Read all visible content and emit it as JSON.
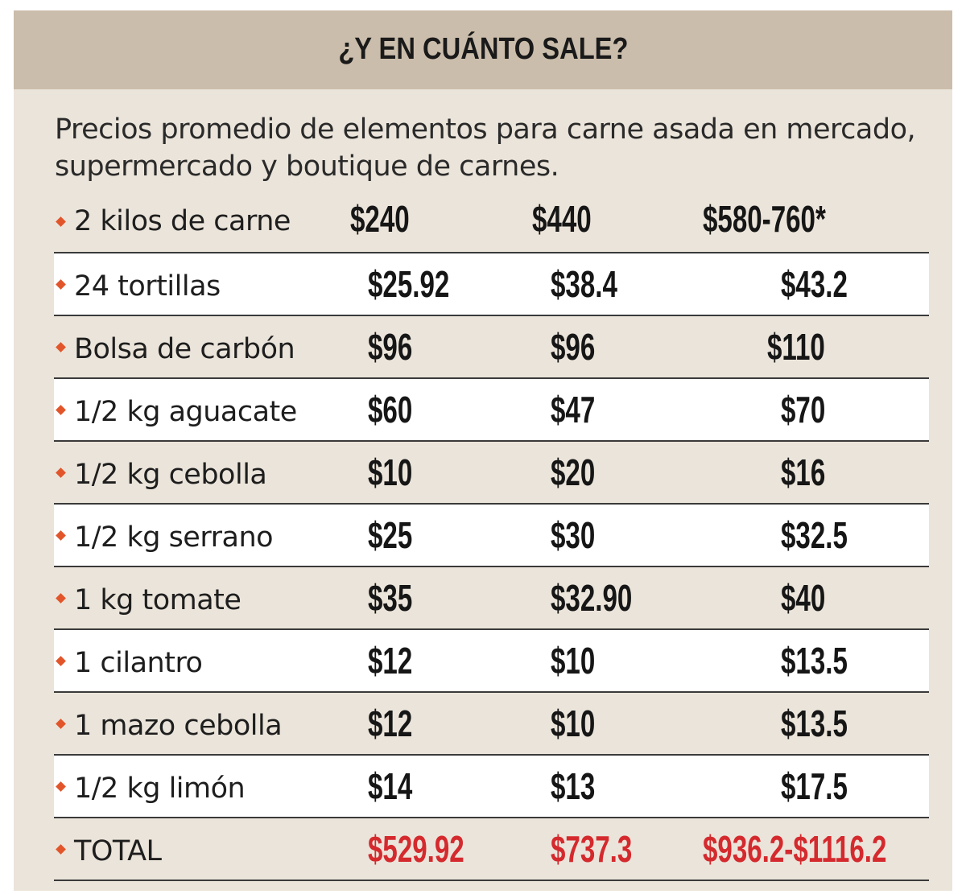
{
  "header": {
    "title": "¿Y EN CUÁNTO SALE?"
  },
  "subtitle": "Precios promedio de elementos para carne asada en mercado, supermercado y boutique de carnes.",
  "rows": [
    {
      "label": "2 kilos de carne",
      "mercado": "$240",
      "supermercado": "$440",
      "boutique": "$580-760*"
    },
    {
      "label": "24 tortillas",
      "mercado": "$25.92",
      "supermercado": "$38.4",
      "boutique": "$43.2"
    },
    {
      "label": "Bolsa de carbón",
      "mercado": "$96",
      "supermercado": "$96",
      "boutique": "$110"
    },
    {
      "label": "1/2 kg aguacate",
      "mercado": "$60",
      "supermercado": "$47",
      "boutique": "$70"
    },
    {
      "label": "1/2 kg cebolla",
      "mercado": "$10",
      "supermercado": "$20",
      "boutique": "$16"
    },
    {
      "label": "1/2 kg serrano",
      "mercado": "$25",
      "supermercado": "$30",
      "boutique": "$32.5"
    },
    {
      "label": "1 kg tomate",
      "mercado": "$35",
      "supermercado": "$32.90",
      "boutique": "$40"
    },
    {
      "label": "1 cilantro",
      "mercado": "$12",
      "supermercado": "$10",
      "boutique": "$13.5"
    },
    {
      "label": "1 mazo cebolla",
      "mercado": "$12",
      "supermercado": "$10",
      "boutique": "$13.5"
    },
    {
      "label": "1/2 kg limón",
      "mercado": "$14",
      "supermercado": "$13",
      "boutique": "$17.5"
    }
  ],
  "total": {
    "label": "TOTAL",
    "mercado": "$529.92",
    "supermercado": "$737.3",
    "boutique": "$936.2-$1116.2"
  },
  "colors": {
    "header_bg": "#cbbdab",
    "card_bg": "#ebe4da",
    "bullet": "#e2552a",
    "total_price": "#d42a2e"
  },
  "icons": {
    "bullet": "orange-diamond-bullet-icon"
  }
}
